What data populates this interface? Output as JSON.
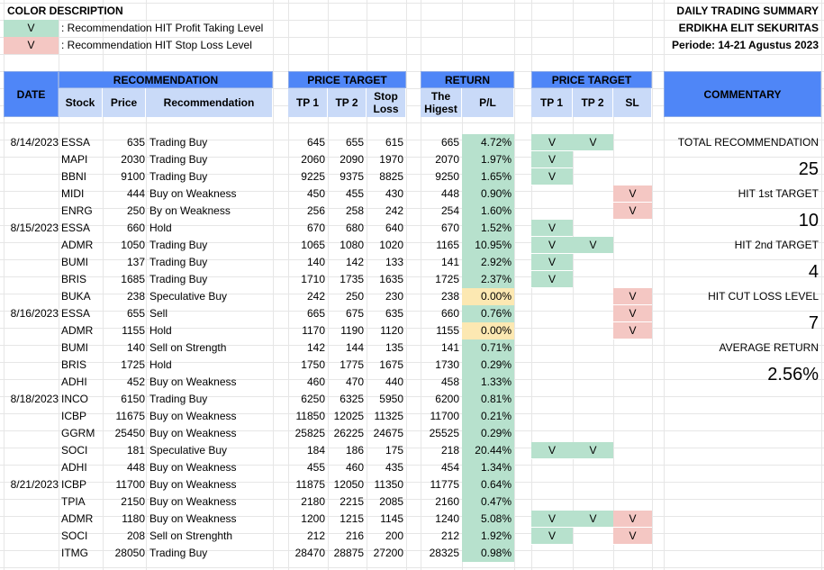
{
  "legend": {
    "title": "COLOR DESCRIPTION",
    "items": [
      {
        "mark": "V",
        "text": ": Recommendation HIT Profit Taking Level",
        "color": "#b7e1cd"
      },
      {
        "mark": "V",
        "text": ": Recommendation HIT Stop Loss Level",
        "color": "#f4c7c3"
      }
    ]
  },
  "title": {
    "line1": "DAILY TRADING SUMMARY",
    "line2": "ERDIKHA ELIT SEKURITAS",
    "line3": "Periode: 14-21 Agustus 2023"
  },
  "headers": {
    "date": "DATE",
    "recommendation_group": "RECOMMENDATION",
    "stock": "Stock",
    "price": "Price",
    "recommendation": "Recommendation",
    "price_target_group": "PRICE TARGET",
    "tp1": "TP 1",
    "tp2": "TP 2",
    "stop_loss": "Stop Loss",
    "return_group": "RETURN",
    "highest": "The Higest",
    "pl": "P/L",
    "hit_group": "PRICE TARGET",
    "hit_tp1": "TP 1",
    "hit_tp2": "TP 2",
    "hit_sl": "SL",
    "commentary": "COMMENTARY"
  },
  "rows": [
    {
      "date": "8/14/2023",
      "stock": "ESSA",
      "price": "635",
      "rec": "Trading Buy",
      "tp1": "645",
      "tp2": "655",
      "sl": "615",
      "high": "665",
      "pl": "4.72%",
      "plc": "green",
      "h1": "V",
      "h2": "V",
      "hs": ""
    },
    {
      "date": "",
      "stock": "MAPI",
      "price": "2030",
      "rec": "Trading Buy",
      "tp1": "2060",
      "tp2": "2090",
      "sl": "1970",
      "high": "2070",
      "pl": "1.97%",
      "plc": "green",
      "h1": "V",
      "h2": "",
      "hs": ""
    },
    {
      "date": "",
      "stock": "BBNI",
      "price": "9100",
      "rec": "Trading Buy",
      "tp1": "9225",
      "tp2": "9375",
      "sl": "8825",
      "high": "9250",
      "pl": "1.65%",
      "plc": "green",
      "h1": "V",
      "h2": "",
      "hs": ""
    },
    {
      "date": "",
      "stock": "MIDI",
      "price": "444",
      "rec": "Buy on Weakness",
      "tp1": "450",
      "tp2": "455",
      "sl": "430",
      "high": "448",
      "pl": "0.90%",
      "plc": "green",
      "h1": "",
      "h2": "",
      "hs": "V"
    },
    {
      "date": "",
      "stock": "ENRG",
      "price": "250",
      "rec": "By on Weakness",
      "tp1": "256",
      "tp2": "258",
      "sl": "242",
      "high": "254",
      "pl": "1.60%",
      "plc": "green",
      "h1": "",
      "h2": "",
      "hs": "V"
    },
    {
      "date": "8/15/2023",
      "stock": "ESSA",
      "price": "660",
      "rec": "Hold",
      "tp1": "670",
      "tp2": "680",
      "sl": "640",
      "high": "670",
      "pl": "1.52%",
      "plc": "green",
      "h1": "V",
      "h2": "",
      "hs": ""
    },
    {
      "date": "",
      "stock": "ADMR",
      "price": "1050",
      "rec": "Trading Buy",
      "tp1": "1065",
      "tp2": "1080",
      "sl": "1020",
      "high": "1165",
      "pl": "10.95%",
      "plc": "green",
      "h1": "V",
      "h2": "V",
      "hs": ""
    },
    {
      "date": "",
      "stock": "BUMI",
      "price": "137",
      "rec": "Trading Buy",
      "tp1": "140",
      "tp2": "142",
      "sl": "133",
      "high": "141",
      "pl": "2.92%",
      "plc": "green",
      "h1": "V",
      "h2": "",
      "hs": ""
    },
    {
      "date": "",
      "stock": "BRIS",
      "price": "1685",
      "rec": "Trading Buy",
      "tp1": "1710",
      "tp2": "1735",
      "sl": "1635",
      "high": "1725",
      "pl": "2.37%",
      "plc": "green",
      "h1": "V",
      "h2": "",
      "hs": ""
    },
    {
      "date": "",
      "stock": "BUKA",
      "price": "238",
      "rec": "Speculative Buy",
      "tp1": "242",
      "tp2": "250",
      "sl": "230",
      "high": "238",
      "pl": "0.00%",
      "plc": "yellow",
      "h1": "",
      "h2": "",
      "hs": "V"
    },
    {
      "date": "8/16/2023",
      "stock": "ESSA",
      "price": "655",
      "rec": "Sell",
      "tp1": "665",
      "tp2": "675",
      "sl": "635",
      "high": "660",
      "pl": "0.76%",
      "plc": "green",
      "h1": "",
      "h2": "",
      "hs": "V"
    },
    {
      "date": "",
      "stock": "ADMR",
      "price": "1155",
      "rec": "Hold",
      "tp1": "1170",
      "tp2": "1190",
      "sl": "1120",
      "high": "1155",
      "pl": "0.00%",
      "plc": "yellow",
      "h1": "",
      "h2": "",
      "hs": "V"
    },
    {
      "date": "",
      "stock": "BUMI",
      "price": "140",
      "rec": "Sell on Strength",
      "tp1": "142",
      "tp2": "144",
      "sl": "135",
      "high": "141",
      "pl": "0.71%",
      "plc": "green",
      "h1": "",
      "h2": "",
      "hs": ""
    },
    {
      "date": "",
      "stock": "BRIS",
      "price": "1725",
      "rec": "Hold",
      "tp1": "1750",
      "tp2": "1775",
      "sl": "1675",
      "high": "1730",
      "pl": "0.29%",
      "plc": "green",
      "h1": "",
      "h2": "",
      "hs": ""
    },
    {
      "date": "",
      "stock": "ADHI",
      "price": "452",
      "rec": "Buy on Weakness",
      "tp1": "460",
      "tp2": "470",
      "sl": "440",
      "high": "458",
      "pl": "1.33%",
      "plc": "green",
      "h1": "",
      "h2": "",
      "hs": ""
    },
    {
      "date": "8/18/2023",
      "stock": "INCO",
      "price": "6150",
      "rec": "Trading Buy",
      "tp1": "6250",
      "tp2": "6325",
      "sl": "5950",
      "high": "6200",
      "pl": "0.81%",
      "plc": "green",
      "h1": "",
      "h2": "",
      "hs": ""
    },
    {
      "date": "",
      "stock": "ICBP",
      "price": "11675",
      "rec": "Buy on Weakness",
      "tp1": "11850",
      "tp2": "12025",
      "sl": "11325",
      "high": "11700",
      "pl": "0.21%",
      "plc": "green",
      "h1": "",
      "h2": "",
      "hs": ""
    },
    {
      "date": "",
      "stock": "GGRM",
      "price": "25450",
      "rec": "Buy on Weakness",
      "tp1": "25825",
      "tp2": "26225",
      "sl": "24675",
      "high": "25525",
      "pl": "0.29%",
      "plc": "green",
      "h1": "",
      "h2": "",
      "hs": ""
    },
    {
      "date": "",
      "stock": "SOCI",
      "price": "181",
      "rec": "Speculative Buy",
      "tp1": "184",
      "tp2": "186",
      "sl": "175",
      "high": "218",
      "pl": "20.44%",
      "plc": "green",
      "h1": "V",
      "h2": "V",
      "hs": ""
    },
    {
      "date": "",
      "stock": "ADHI",
      "price": "448",
      "rec": "Buy on Weakness",
      "tp1": "455",
      "tp2": "460",
      "sl": "435",
      "high": "454",
      "pl": "1.34%",
      "plc": "green",
      "h1": "",
      "h2": "",
      "hs": ""
    },
    {
      "date": "8/21/2023",
      "stock": "ICBP",
      "price": "11700",
      "rec": "Buy on Weakness",
      "tp1": "11875",
      "tp2": "12050",
      "sl": "11350",
      "high": "11775",
      "pl": "0.64%",
      "plc": "green",
      "h1": "",
      "h2": "",
      "hs": ""
    },
    {
      "date": "",
      "stock": "TPIA",
      "price": "2150",
      "rec": "Buy on Weakness",
      "tp1": "2180",
      "tp2": "2215",
      "sl": "2085",
      "high": "2160",
      "pl": "0.47%",
      "plc": "green",
      "h1": "",
      "h2": "",
      "hs": ""
    },
    {
      "date": "",
      "stock": "ADMR",
      "price": "1180",
      "rec": "Buy on Weakness",
      "tp1": "1200",
      "tp2": "1215",
      "sl": "1145",
      "high": "1240",
      "pl": "5.08%",
      "plc": "green",
      "h1": "V",
      "h2": "V",
      "hs": "V"
    },
    {
      "date": "",
      "stock": "SOCI",
      "price": "208",
      "rec": "Sell on Strenghth",
      "tp1": "212",
      "tp2": "216",
      "sl": "200",
      "high": "212",
      "pl": "1.92%",
      "plc": "green",
      "h1": "V",
      "h2": "",
      "hs": "V"
    },
    {
      "date": "",
      "stock": "ITMG",
      "price": "28050",
      "rec": "Trading Buy",
      "tp1": "28470",
      "tp2": "28875",
      "sl": "27200",
      "high": "28325",
      "pl": "0.98%",
      "plc": "green",
      "h1": "",
      "h2": "",
      "hs": ""
    }
  ],
  "commentary": [
    {
      "label": "TOTAL RECOMMENDATION",
      "value": "25"
    },
    {
      "label": "HIT 1st TARGET",
      "value": "10"
    },
    {
      "label": "HIT 2nd TARGET",
      "value": "4"
    },
    {
      "label": "HIT CUT LOSS LEVEL",
      "value": "7"
    },
    {
      "label": "AVERAGE RETURN",
      "value": "2.56%"
    }
  ],
  "colors": {
    "header_blue": "#4f86f7",
    "subheader_blue": "#c9daf8",
    "hit_green": "#b7e1cd",
    "stop_red": "#f4c7c3",
    "zero_yellow": "#fce8b2"
  }
}
